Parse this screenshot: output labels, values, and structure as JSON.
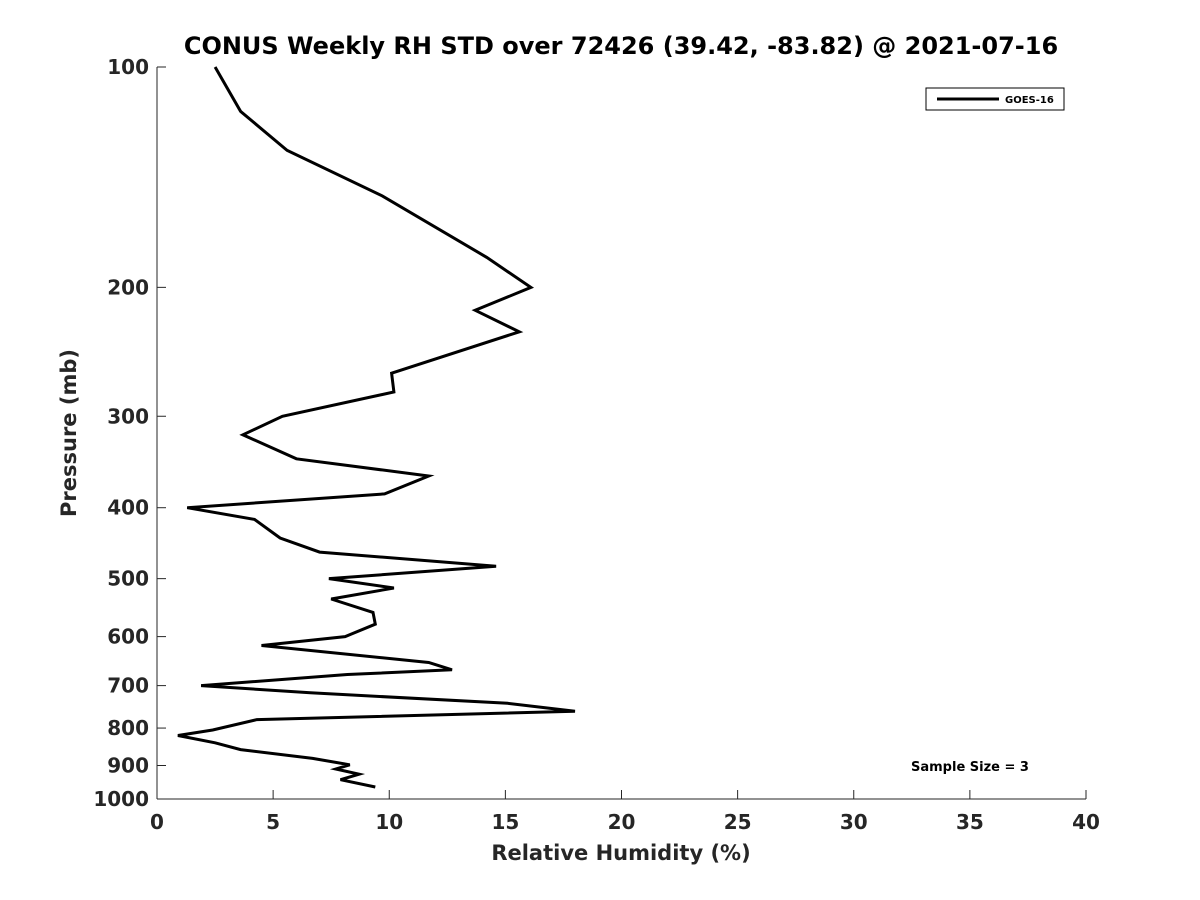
{
  "chart_data": {
    "type": "line",
    "title": "CONUS Weekly RH STD over 72426 (39.42, -83.82) @ 2021-07-16",
    "xlabel": "Relative Humidity (%)",
    "ylabel": "Pressure (mb)",
    "xlim": [
      0,
      40
    ],
    "ylim": [
      100,
      1000
    ],
    "y_scale": "log",
    "y_reversed": true,
    "x_ticks": [
      "0",
      "5",
      "10",
      "15",
      "20",
      "25",
      "30",
      "35",
      "40"
    ],
    "y_ticks": [
      "100",
      "200",
      "300",
      "400",
      "500",
      "600",
      "700",
      "800",
      "900",
      "1000"
    ],
    "grid": false,
    "legend_position": "top-right",
    "annotation": "Sample Size = 3",
    "series": [
      {
        "name": "GOES-16",
        "color": "#000000",
        "x": [
          2.5,
          3.6,
          5.6,
          9.7,
          14.2,
          16.1,
          13.7,
          15.6,
          10.1,
          10.2,
          5.4,
          3.7,
          6.0,
          11.7,
          9.8,
          1.3,
          4.2,
          5.3,
          7.0,
          14.6,
          7.4,
          10.2,
          7.5,
          9.3,
          9.4,
          8.1,
          4.5,
          11.7,
          12.7,
          8.2,
          1.9,
          6.6,
          15.1,
          18.0,
          4.3,
          2.4,
          0.9,
          2.5,
          3.6,
          6.7,
          8.3,
          7.7,
          8.7,
          7.9,
          9.4
        ],
        "y": [
          100,
          115,
          130,
          150,
          182,
          200,
          215,
          230,
          262,
          278,
          300,
          318,
          343,
          362,
          383,
          400,
          415,
          440,
          460,
          481,
          500,
          515,
          533,
          556,
          577,
          600,
          617,
          651,
          666,
          676,
          700,
          716,
          740,
          759,
          779,
          805,
          819,
          838,
          856,
          880,
          898,
          910,
          925,
          941,
          963
        ]
      }
    ]
  }
}
